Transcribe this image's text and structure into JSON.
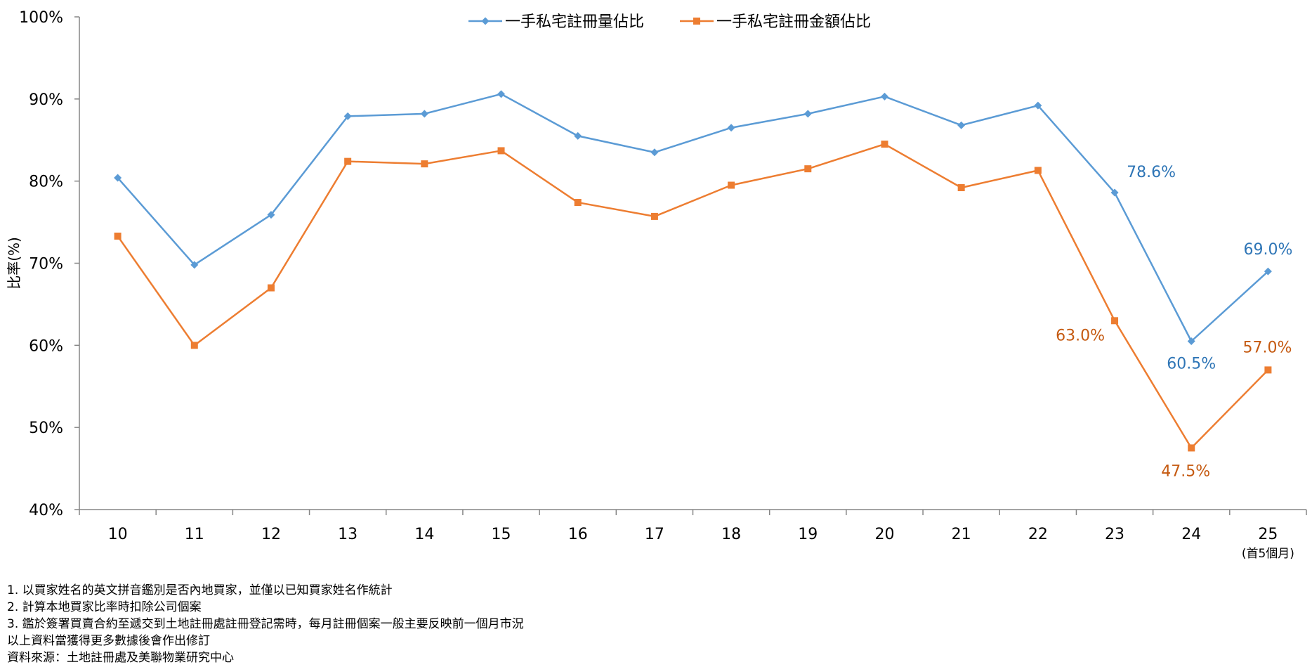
{
  "chart_data": {
    "type": "line",
    "categories": [
      "10",
      "11",
      "12",
      "13",
      "14",
      "15",
      "16",
      "17",
      "18",
      "19",
      "20",
      "21",
      "22",
      "23",
      "24",
      "25"
    ],
    "category_sublabels": {
      "25": "(首5個月)"
    },
    "ylabel": "比率(%)",
    "ylim": [
      40,
      100
    ],
    "yticks": [
      "40%",
      "50%",
      "60%",
      "70%",
      "80%",
      "90%",
      "100%"
    ],
    "ytick_values": [
      40,
      50,
      60,
      70,
      80,
      90,
      100
    ],
    "grid": false,
    "legend_position": "top",
    "series": [
      {
        "name": "一手私宅註冊量佔比",
        "color": "#5b9bd5",
        "label_color": "#2e75b6",
        "marker": "diamond",
        "values": [
          80.4,
          69.8,
          75.9,
          87.9,
          88.2,
          90.6,
          85.5,
          83.5,
          86.5,
          88.2,
          90.3,
          86.8,
          89.2,
          78.6,
          60.5,
          69.0
        ],
        "data_labels": [
          {
            "index": 13,
            "text": "78.6%"
          },
          {
            "index": 14,
            "text": "60.5%"
          },
          {
            "index": 15,
            "text": "69.0%"
          }
        ]
      },
      {
        "name": "一手私宅註冊金額佔比",
        "color": "#ed7d31",
        "label_color": "#c55a11",
        "marker": "square",
        "values": [
          73.3,
          60.0,
          67.0,
          82.4,
          82.1,
          83.7,
          77.4,
          75.7,
          79.5,
          81.5,
          84.5,
          79.2,
          81.3,
          63.0,
          47.5,
          57.0
        ],
        "data_labels": [
          {
            "index": 13,
            "text": "63.0%"
          },
          {
            "index": 14,
            "text": "47.5%"
          },
          {
            "index": 15,
            "text": "57.0%"
          }
        ]
      }
    ]
  },
  "notes": {
    "line1": "1. 以買家姓名的英文拼音鑑別是否內地買家，並僅以已知買家姓名作統計",
    "line2": "2. 計算本地買家比率時扣除公司個案",
    "line3": "3. 鑑於簽署買賣合約至遞交到土地註冊處註冊登記需時，每月註冊個案一般主要反映前一個月市況",
    "line4": "以上資料當獲得更多數據後會作出修訂",
    "source": "資料來源：土地註冊處及美聯物業研究中心"
  }
}
